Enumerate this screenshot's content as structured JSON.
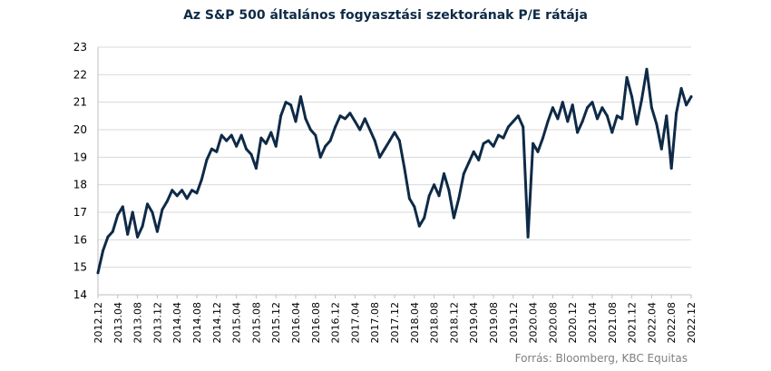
{
  "chart_data": {
    "type": "line",
    "title": "Az S&P 500 általános fogyasztási szektorának P/E rátája",
    "source": "Forrás: Bloomberg, KBC Equitas",
    "xlabel": "",
    "ylabel": "",
    "ylim": [
      14,
      23
    ],
    "yticks": [
      14,
      15,
      16,
      17,
      18,
      19,
      20,
      21,
      22,
      23
    ],
    "xlim": [
      "2012.12",
      "2022.12"
    ],
    "xticks": [
      "2012.12",
      "2013.04",
      "2013.08",
      "2013.12",
      "2014.04",
      "2014.08",
      "2014.12",
      "2015.04",
      "2015.08",
      "2015.12",
      "2016.04",
      "2016.08",
      "2016.12",
      "2017.04",
      "2017.08",
      "2017.12",
      "2018.04",
      "2018.08",
      "2018.12",
      "2019.04",
      "2019.08",
      "2019.12",
      "2020.04",
      "2020.08",
      "2020.12",
      "2021.04",
      "2021.08",
      "2021.12",
      "2022.04",
      "2022.08",
      "2022.12"
    ],
    "grid": true,
    "line_color": "#0e2a47",
    "series": [
      {
        "name": "",
        "points": [
          [
            "2012.12",
            14.8
          ],
          [
            "2013.01",
            15.6
          ],
          [
            "2013.02",
            16.1
          ],
          [
            "2013.03",
            16.3
          ],
          [
            "2013.04",
            16.9
          ],
          [
            "2013.05",
            17.2
          ],
          [
            "2013.06",
            16.2
          ],
          [
            "2013.07",
            17.0
          ],
          [
            "2013.08",
            16.1
          ],
          [
            "2013.09",
            16.5
          ],
          [
            "2013.10",
            17.3
          ],
          [
            "2013.11",
            17.0
          ],
          [
            "2013.12",
            16.3
          ],
          [
            "2014.01",
            17.1
          ],
          [
            "2014.02",
            17.4
          ],
          [
            "2014.03",
            17.8
          ],
          [
            "2014.04",
            17.6
          ],
          [
            "2014.05",
            17.8
          ],
          [
            "2014.06",
            17.5
          ],
          [
            "2014.07",
            17.8
          ],
          [
            "2014.08",
            17.7
          ],
          [
            "2014.09",
            18.2
          ],
          [
            "2014.10",
            18.9
          ],
          [
            "2014.11",
            19.3
          ],
          [
            "2014.12",
            19.2
          ],
          [
            "2015.01",
            19.8
          ],
          [
            "2015.02",
            19.6
          ],
          [
            "2015.03",
            19.8
          ],
          [
            "2015.04",
            19.4
          ],
          [
            "2015.05",
            19.8
          ],
          [
            "2015.06",
            19.3
          ],
          [
            "2015.07",
            19.1
          ],
          [
            "2015.08",
            18.6
          ],
          [
            "2015.09",
            19.7
          ],
          [
            "2015.10",
            19.5
          ],
          [
            "2015.11",
            19.9
          ],
          [
            "2015.12",
            19.4
          ],
          [
            "2016.01",
            20.5
          ],
          [
            "2016.02",
            21.0
          ],
          [
            "2016.03",
            20.9
          ],
          [
            "2016.04",
            20.3
          ],
          [
            "2016.05",
            21.2
          ],
          [
            "2016.06",
            20.4
          ],
          [
            "2016.07",
            20.0
          ],
          [
            "2016.08",
            19.8
          ],
          [
            "2016.09",
            19.0
          ],
          [
            "2016.10",
            19.4
          ],
          [
            "2016.11",
            19.6
          ],
          [
            "2016.12",
            20.1
          ],
          [
            "2017.01",
            20.5
          ],
          [
            "2017.02",
            20.4
          ],
          [
            "2017.03",
            20.6
          ],
          [
            "2017.04",
            20.3
          ],
          [
            "2017.05",
            20.0
          ],
          [
            "2017.06",
            20.4
          ],
          [
            "2017.07",
            20.0
          ],
          [
            "2017.08",
            19.6
          ],
          [
            "2017.09",
            19.0
          ],
          [
            "2017.10",
            19.3
          ],
          [
            "2017.11",
            19.6
          ],
          [
            "2017.12",
            19.9
          ],
          [
            "2018.01",
            19.6
          ],
          [
            "2018.02",
            18.6
          ],
          [
            "2018.03",
            17.5
          ],
          [
            "2018.04",
            17.2
          ],
          [
            "2018.05",
            16.5
          ],
          [
            "2018.06",
            16.8
          ],
          [
            "2018.07",
            17.6
          ],
          [
            "2018.08",
            18.0
          ],
          [
            "2018.09",
            17.6
          ],
          [
            "2018.10",
            18.4
          ],
          [
            "2018.11",
            17.8
          ],
          [
            "2018.12",
            16.8
          ],
          [
            "2019.01",
            17.5
          ],
          [
            "2019.02",
            18.4
          ],
          [
            "2019.03",
            18.8
          ],
          [
            "2019.04",
            19.2
          ],
          [
            "2019.05",
            18.9
          ],
          [
            "2019.06",
            19.5
          ],
          [
            "2019.07",
            19.6
          ],
          [
            "2019.08",
            19.4
          ],
          [
            "2019.09",
            19.8
          ],
          [
            "2019.10",
            19.7
          ],
          [
            "2019.11",
            20.1
          ],
          [
            "2019.12",
            20.3
          ],
          [
            "2020.01",
            20.5
          ],
          [
            "2020.02",
            20.1
          ],
          [
            "2020.03",
            16.1
          ],
          [
            "2020.04",
            19.5
          ],
          [
            "2020.05",
            19.2
          ],
          [
            "2020.06",
            19.7
          ],
          [
            "2020.07",
            20.3
          ],
          [
            "2020.08",
            20.8
          ],
          [
            "2020.09",
            20.4
          ],
          [
            "2020.10",
            21.0
          ],
          [
            "2020.11",
            20.3
          ],
          [
            "2020.12",
            20.9
          ],
          [
            "2021.01",
            19.9
          ],
          [
            "2021.02",
            20.3
          ],
          [
            "2021.03",
            20.8
          ],
          [
            "2021.04",
            21.0
          ],
          [
            "2021.05",
            20.4
          ],
          [
            "2021.06",
            20.8
          ],
          [
            "2021.07",
            20.5
          ],
          [
            "2021.08",
            19.9
          ],
          [
            "2021.09",
            20.5
          ],
          [
            "2021.10",
            20.4
          ],
          [
            "2021.11",
            21.9
          ],
          [
            "2021.12",
            21.2
          ],
          [
            "2022.01",
            20.2
          ],
          [
            "2022.02",
            21.1
          ],
          [
            "2022.03",
            22.2
          ],
          [
            "2022.04",
            20.8
          ],
          [
            "2022.05",
            20.2
          ],
          [
            "2022.06",
            19.3
          ],
          [
            "2022.07",
            20.5
          ],
          [
            "2022.08",
            18.6
          ],
          [
            "2022.09",
            20.6
          ],
          [
            "2022.10",
            21.5
          ],
          [
            "2022.11",
            20.9
          ],
          [
            "2022.12",
            21.2
          ]
        ]
      }
    ]
  }
}
